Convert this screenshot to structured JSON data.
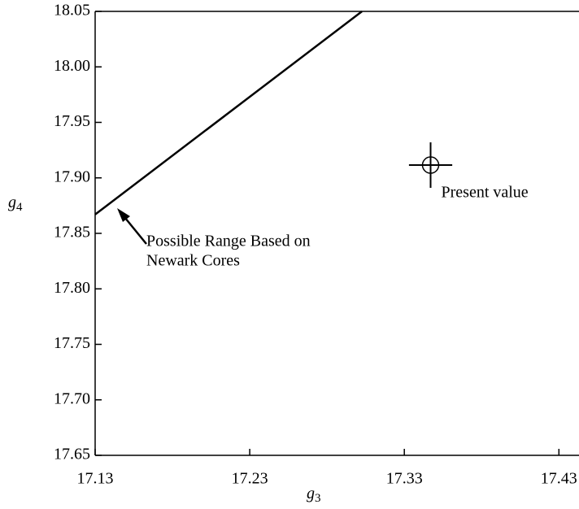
{
  "chart_data": {
    "type": "line",
    "x_label": {
      "base": "g",
      "sub": "3"
    },
    "y_label": {
      "base": "g",
      "sub": "4"
    },
    "xlim": [
      17.13,
      17.443
    ],
    "ylim": [
      17.65,
      18.05
    ],
    "xticks": [
      17.13,
      17.23,
      17.33,
      17.43
    ],
    "yticks": [
      17.65,
      {
        "value": 17.7,
        "label": "17.70"
      },
      17.75,
      {
        "value": 17.8,
        "label": "17.80"
      },
      17.85,
      {
        "value": 17.9,
        "label": "17.90"
      },
      17.95,
      {
        "value": 18.0,
        "label": "18.00"
      },
      18.05
    ],
    "color": "#000000",
    "line": {
      "x": [
        17.13,
        17.3026
      ],
      "values": [
        17.867,
        18.05
      ]
    },
    "point": {
      "x": 17.347,
      "value": 17.9115,
      "x_error": 0.014,
      "y_error": 0.0205,
      "label": "Present value"
    },
    "annotation_lines": [
      "Possible Range Based on",
      "Newark Cores"
    ]
  }
}
